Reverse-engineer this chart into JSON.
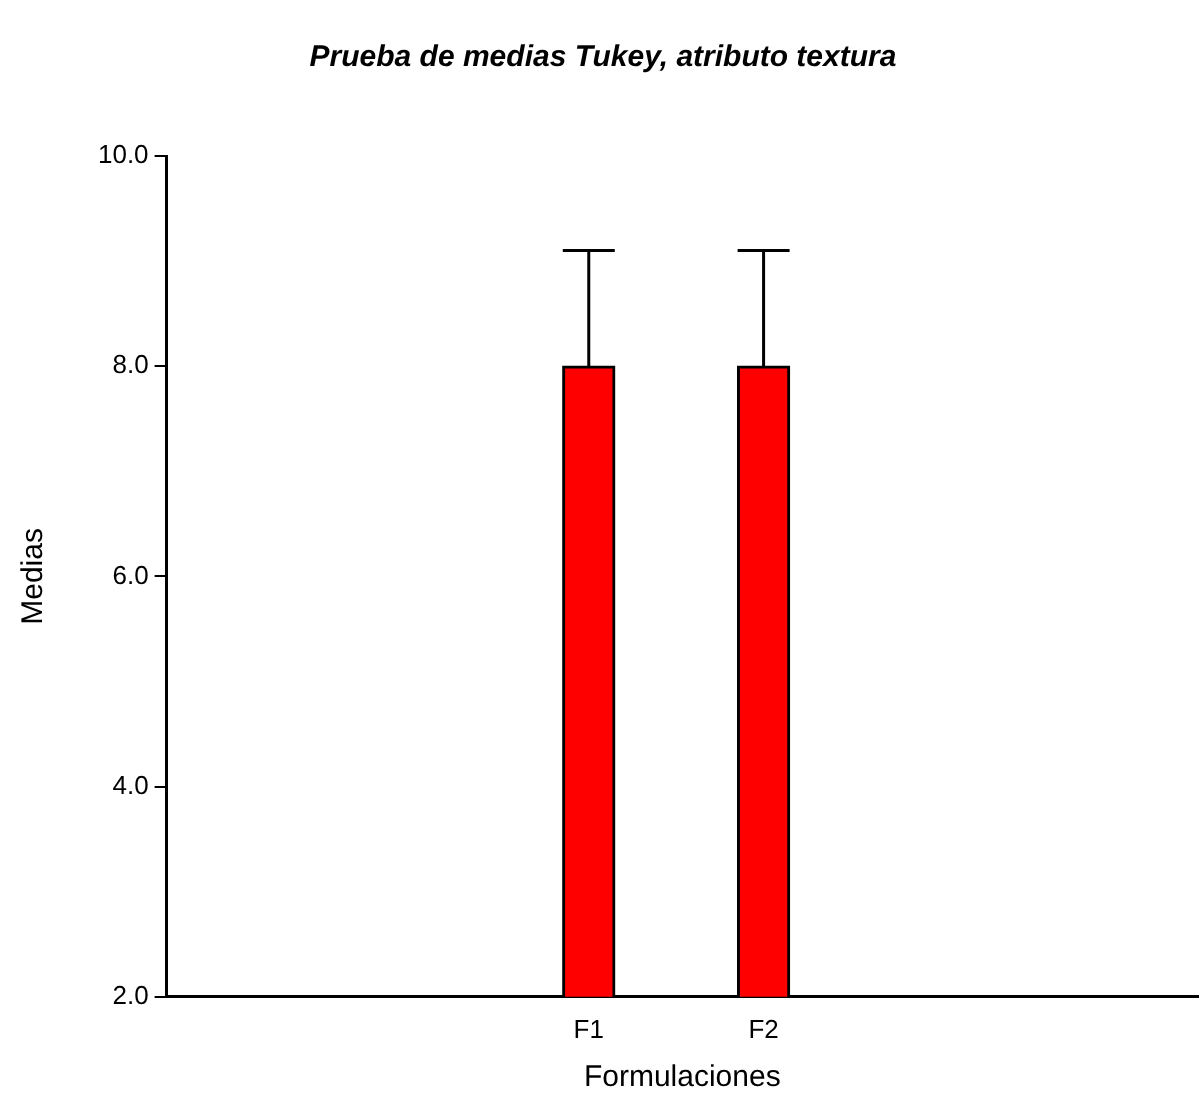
{
  "chart_data": {
    "type": "bar",
    "title": "Prueba de medias Tukey, atributo textura",
    "xlabel": "Formulaciones",
    "ylabel": "Medias",
    "categories": [
      "F1",
      "F2"
    ],
    "values": [
      8.0,
      8.0
    ],
    "errors": [
      1.1,
      1.1
    ],
    "color": "#ff0000",
    "ylim": [
      2,
      10
    ],
    "yticks": [
      {
        "value": 2,
        "label": "2.0"
      },
      {
        "value": 4,
        "label": "4.0"
      },
      {
        "value": 6,
        "label": "6.0"
      },
      {
        "value": 8,
        "label": "8.0"
      },
      {
        "value": 10,
        "label": "10.0"
      }
    ],
    "grid": false,
    "legend": false
  }
}
